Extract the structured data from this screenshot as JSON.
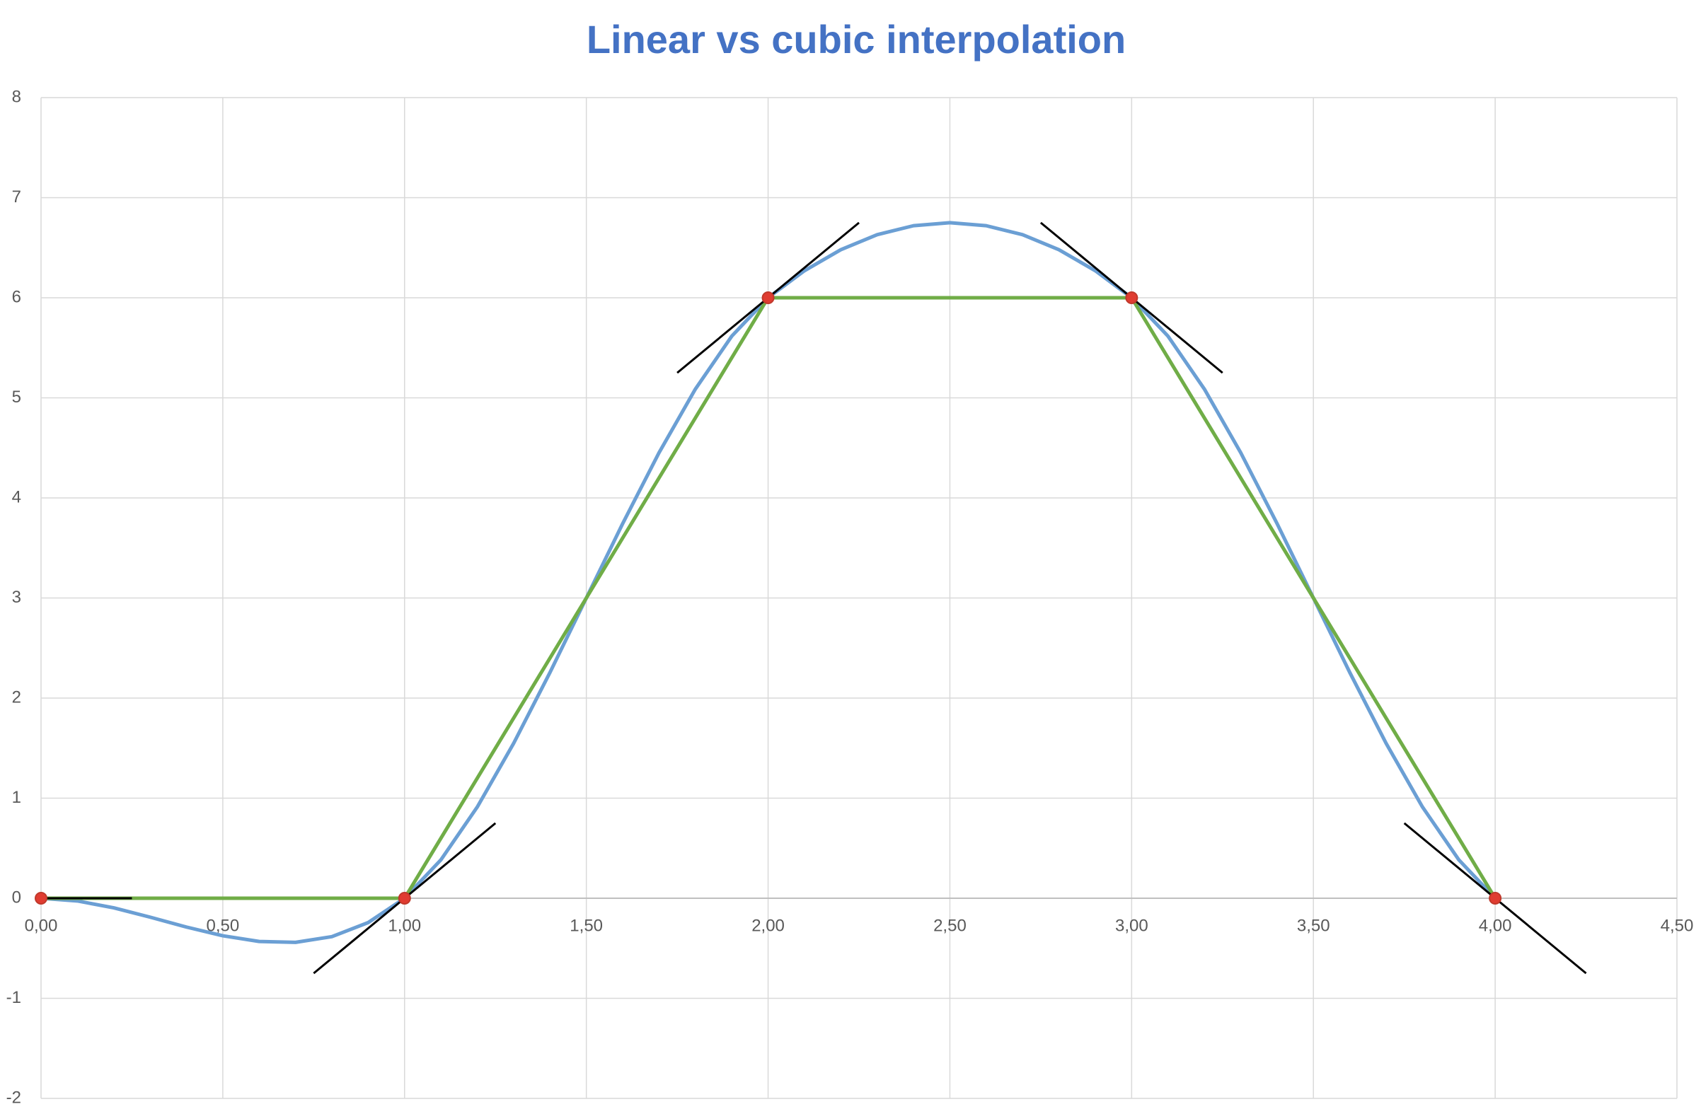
{
  "chart_data": {
    "type": "scatter",
    "title": "Linear vs cubic interpolation",
    "xlim": [
      0,
      4.5
    ],
    "xticks": [
      {
        "value": 0,
        "label": "0,00"
      },
      {
        "value": 0.5,
        "label": "0,50"
      },
      {
        "value": 1,
        "label": "1,00"
      },
      {
        "value": 1.5,
        "label": "1,50"
      },
      {
        "value": 2,
        "label": "2,00"
      },
      {
        "value": 2.5,
        "label": "2,50"
      },
      {
        "value": 3,
        "label": "3,00"
      },
      {
        "value": 3.5,
        "label": "3,50"
      },
      {
        "value": 4,
        "label": "4,00"
      },
      {
        "value": 4.5,
        "label": "4,50"
      }
    ],
    "ylim": [
      -2,
      8
    ],
    "yticks": [
      -2,
      -1,
      0,
      1,
      2,
      3,
      4,
      5,
      6,
      7,
      8
    ],
    "grid": true,
    "series": [
      {
        "mode": "line",
        "color": "#6b9fd4",
        "x": [
          0,
          0.1,
          0.2,
          0.3,
          0.4,
          0.5,
          0.6,
          0.7,
          0.8,
          0.9,
          1,
          1.1,
          1.2,
          1.3,
          1.4,
          1.5,
          1.6,
          1.7,
          1.8,
          1.9,
          2,
          2.1,
          2.2,
          2.3,
          2.4,
          2.5,
          2.6,
          2.7,
          2.8,
          2.9,
          3,
          3.1,
          3.2,
          3.3,
          3.4,
          3.5,
          3.6,
          3.7,
          3.8,
          3.9,
          4
        ],
        "values": [
          0,
          -0.027,
          -0.096,
          -0.189,
          -0.288,
          -0.375,
          -0.432,
          -0.441,
          -0.384,
          -0.243,
          0,
          0.384,
          0.912,
          1.548,
          2.256,
          3,
          3.744,
          4.452,
          5.088,
          5.616,
          6,
          6.27,
          6.48,
          6.63,
          6.72,
          6.75,
          6.72,
          6.63,
          6.48,
          6.27,
          6,
          5.616,
          5.088,
          4.452,
          3.744,
          3,
          2.256,
          1.548,
          0.912,
          0.384,
          0
        ]
      },
      {
        "mode": "line",
        "color": "#70ad47",
        "x": [
          0,
          1,
          2,
          3,
          4
        ],
        "values": [
          0,
          0,
          6,
          6,
          0
        ]
      },
      {
        "mode": "line",
        "color": "#000000",
        "x": [
          0,
          0.25
        ],
        "values": [
          0,
          0
        ]
      },
      {
        "mode": "line",
        "color": "#000000",
        "x": [
          0.75,
          1.25
        ],
        "values": [
          -0.75,
          0.75
        ]
      },
      {
        "mode": "line",
        "color": "#000000",
        "x": [
          1.75,
          2.25
        ],
        "values": [
          5.25,
          6.75
        ]
      },
      {
        "mode": "line",
        "color": "#000000",
        "x": [
          2.75,
          3.25
        ],
        "values": [
          6.75,
          5.25
        ]
      },
      {
        "mode": "line",
        "color": "#000000",
        "x": [
          3.75,
          4.25
        ],
        "values": [
          0.75,
          -0.75
        ]
      },
      {
        "mode": "markers",
        "color": "#e03c31",
        "x": [
          0,
          1,
          2,
          3,
          4
        ],
        "values": [
          0,
          0,
          6,
          6,
          0
        ]
      }
    ]
  }
}
